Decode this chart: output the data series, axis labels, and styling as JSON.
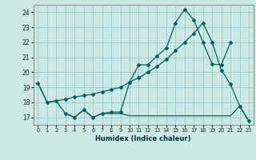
{
  "xlabel": "Humidex (Indice chaleur)",
  "bg_color": "#cce8e4",
  "line_color": "#006060",
  "grid_color": "#99ccc8",
  "xlim": [
    -0.5,
    23.5
  ],
  "ylim": [
    16.5,
    24.5
  ],
  "xticks": [
    0,
    1,
    2,
    3,
    4,
    5,
    6,
    7,
    8,
    9,
    10,
    11,
    12,
    13,
    14,
    15,
    16,
    17,
    18,
    19,
    20,
    21,
    22,
    23
  ],
  "yticks": [
    17,
    18,
    19,
    20,
    21,
    22,
    23,
    24
  ],
  "line1_x": [
    0,
    1,
    2,
    3,
    4,
    5,
    6,
    7,
    8,
    9,
    10,
    11,
    12,
    13,
    14,
    15,
    16,
    17,
    18,
    19,
    20,
    21,
    22,
    23
  ],
  "line1_y": [
    19.3,
    18.0,
    18.1,
    18.2,
    18.35,
    18.45,
    18.55,
    18.7,
    18.85,
    19.0,
    19.35,
    19.65,
    20.0,
    20.4,
    20.85,
    21.45,
    22.0,
    22.6,
    23.3,
    22.0,
    20.15,
    19.2,
    17.75,
    16.75
  ],
  "line2_x": [
    0,
    1,
    2,
    3,
    4,
    5,
    6,
    7,
    8,
    9,
    10,
    11,
    12,
    13,
    14,
    15,
    16,
    17,
    18,
    19,
    20,
    21,
    22,
    23
  ],
  "line2_y": [
    19.3,
    18.0,
    18.1,
    17.25,
    17.0,
    17.5,
    17.0,
    17.25,
    17.25,
    17.25,
    17.1,
    17.1,
    17.1,
    17.1,
    17.1,
    17.1,
    17.1,
    17.1,
    17.1,
    17.1,
    17.1,
    17.1,
    17.75,
    16.75
  ],
  "line3_x": [
    3,
    4,
    5,
    6,
    7,
    8,
    9,
    10,
    11,
    12,
    13,
    14,
    15,
    16,
    17,
    18,
    19,
    20,
    21
  ],
  "line3_y": [
    17.25,
    17.0,
    17.5,
    17.0,
    17.25,
    17.35,
    17.35,
    19.35,
    20.5,
    20.5,
    21.1,
    21.6,
    23.3,
    24.2,
    23.5,
    22.0,
    20.55,
    20.5,
    22.0
  ]
}
